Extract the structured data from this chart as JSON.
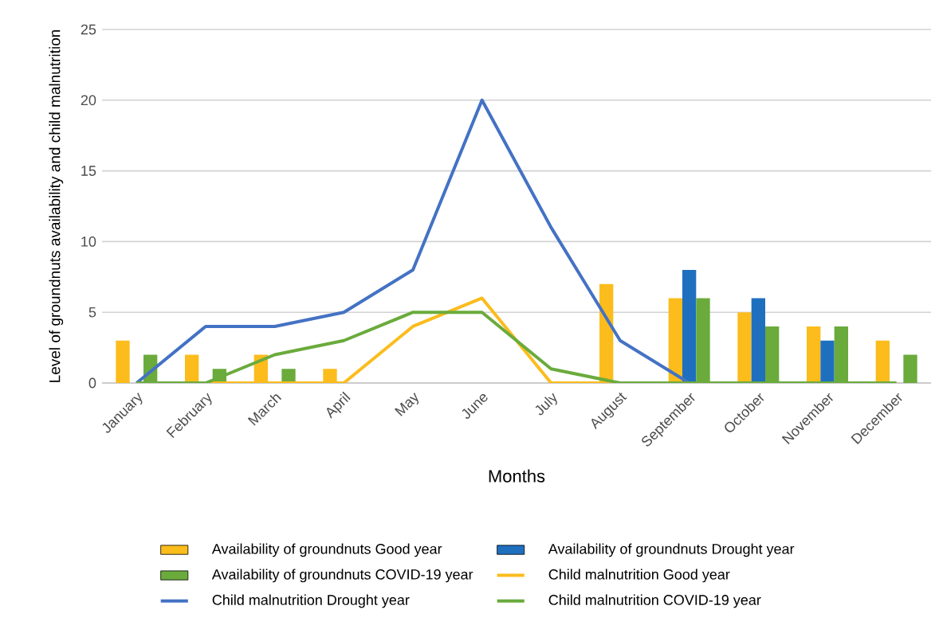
{
  "chart_data": {
    "type": "bar",
    "xlabel": "Months",
    "ylabel": "Level of groundnuts availability and child malnutrition",
    "categories": [
      "January",
      "February",
      "March",
      "April",
      "May",
      "June",
      "July",
      "August",
      "September",
      "October",
      "November",
      "December"
    ],
    "ylim": [
      0,
      25
    ],
    "yticks": [
      0,
      5,
      10,
      15,
      20,
      25
    ],
    "grid": "y",
    "legend": "bottom",
    "series": [
      {
        "name": "Availability of groundnuts Good year",
        "color": "#fbbc1c",
        "values": [
          3,
          2,
          2,
          1,
          0,
          0,
          0,
          7,
          6,
          5,
          4,
          3
        ]
      },
      {
        "name": "Availability of groundnuts Drought year",
        "color": "#1f6fbf",
        "values": [
          0,
          0,
          0,
          0,
          0,
          0,
          0,
          0,
          8,
          6,
          3,
          0
        ]
      },
      {
        "name": "Availability of groundnuts COVID-19 year",
        "color": "#6aab3c",
        "values": [
          2,
          1,
          1,
          0,
          0,
          0,
          0,
          0,
          6,
          4,
          4,
          2
        ]
      },
      {
        "name": "Child malnutrition Good year",
        "type": "line",
        "color": "#fbbc1c",
        "values": [
          0,
          0,
          0,
          0,
          4,
          6,
          0,
          0,
          null,
          null,
          null,
          null
        ]
      },
      {
        "name": "Child malnutrition Drought year",
        "type": "line",
        "color": "#4472c4",
        "values": [
          0,
          4,
          4,
          5,
          8,
          20,
          11,
          3,
          0,
          null,
          null,
          null
        ]
      },
      {
        "name": "Child malnutrition COVID-19 year",
        "type": "line",
        "color": "#6aab3c",
        "values": [
          0,
          0,
          2,
          3,
          5,
          5,
          1,
          0,
          0,
          0,
          0,
          0
        ]
      }
    ]
  }
}
